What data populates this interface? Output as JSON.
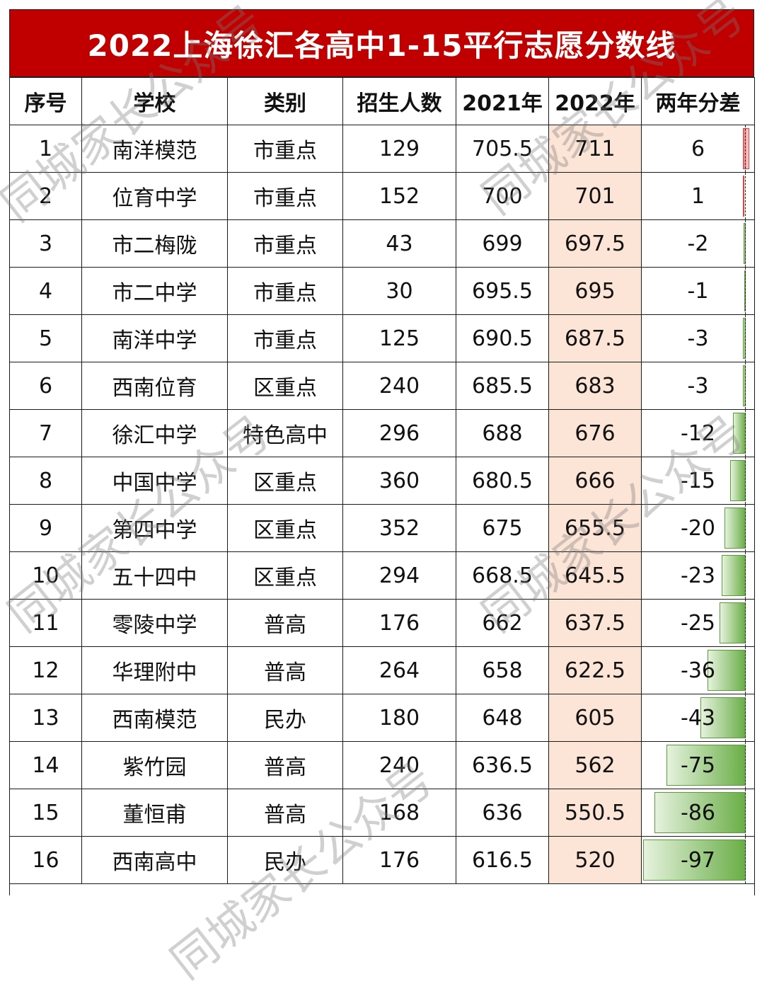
{
  "title": "2022上海徐汇各高中1-15平行志愿分数线",
  "columns": [
    "序号",
    "学校",
    "类别",
    "招生人数",
    "2021年",
    "2022年",
    "两年分差"
  ],
  "rows": [
    {
      "no": "1",
      "school": "南洋模范",
      "type": "市重点",
      "enroll": "129",
      "y2021": "705.5",
      "y2022": "711",
      "diff": "6"
    },
    {
      "no": "2",
      "school": "位育中学",
      "type": "市重点",
      "enroll": "152",
      "y2021": "700",
      "y2022": "701",
      "diff": "1"
    },
    {
      "no": "3",
      "school": "市二梅陇",
      "type": "市重点",
      "enroll": "43",
      "y2021": "699",
      "y2022": "697.5",
      "diff": "-2"
    },
    {
      "no": "4",
      "school": "市二中学",
      "type": "市重点",
      "enroll": "30",
      "y2021": "695.5",
      "y2022": "695",
      "diff": "-1"
    },
    {
      "no": "5",
      "school": "南洋中学",
      "type": "市重点",
      "enroll": "125",
      "y2021": "690.5",
      "y2022": "687.5",
      "diff": "-3"
    },
    {
      "no": "6",
      "school": "西南位育",
      "type": "区重点",
      "enroll": "240",
      "y2021": "685.5",
      "y2022": "683",
      "diff": "-3"
    },
    {
      "no": "7",
      "school": "徐汇中学",
      "type": "特色高中",
      "enroll": "296",
      "y2021": "688",
      "y2022": "676",
      "diff": "-12"
    },
    {
      "no": "8",
      "school": "中国中学",
      "type": "区重点",
      "enroll": "360",
      "y2021": "680.5",
      "y2022": "666",
      "diff": "-15"
    },
    {
      "no": "9",
      "school": "第四中学",
      "type": "区重点",
      "enroll": "352",
      "y2021": "675",
      "y2022": "655.5",
      "diff": "-20"
    },
    {
      "no": "10",
      "school": "五十四中",
      "type": "区重点",
      "enroll": "294",
      "y2021": "668.5",
      "y2022": "645.5",
      "diff": "-23"
    },
    {
      "no": "11",
      "school": "零陵中学",
      "type": "普高",
      "enroll": "176",
      "y2021": "662",
      "y2022": "637.5",
      "diff": "-25"
    },
    {
      "no": "12",
      "school": "华理附中",
      "type": "普高",
      "enroll": "264",
      "y2021": "658",
      "y2022": "622.5",
      "diff": "-36"
    },
    {
      "no": "13",
      "school": "西南模范",
      "type": "民办",
      "enroll": "180",
      "y2021": "648",
      "y2022": "605",
      "diff": "-43"
    },
    {
      "no": "14",
      "school": "紫竹园",
      "type": "普高",
      "enroll": "240",
      "y2021": "636.5",
      "y2022": "562",
      "diff": "-75"
    },
    {
      "no": "15",
      "school": "董恒甫",
      "type": "普高",
      "enroll": "168",
      "y2021": "636",
      "y2022": "550.5",
      "diff": "-86"
    },
    {
      "no": "16",
      "school": "西南高中",
      "type": "民办",
      "enroll": "176",
      "y2021": "616.5",
      "y2022": "520",
      "diff": "-97"
    }
  ],
  "watermark": "同城家长公众号",
  "colors": {
    "title_bg": "#c00000",
    "title_text": "#ffffff",
    "col_2022_bg": "#fce4d6",
    "bar_negative": "#6aae47",
    "bar_positive": "#f08080"
  }
}
